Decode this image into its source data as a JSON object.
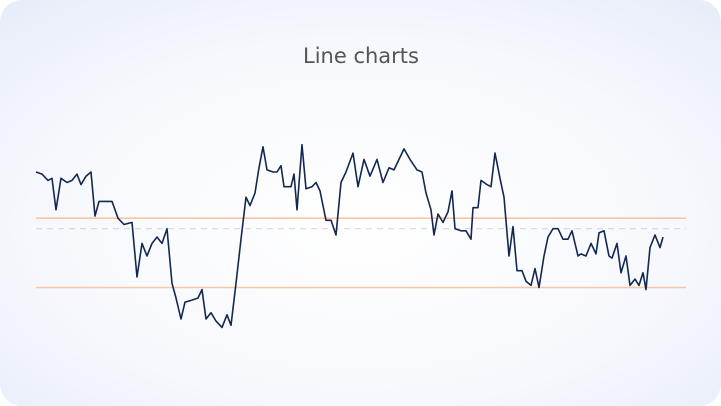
{
  "chart_data": {
    "type": "line",
    "title": "Line charts",
    "x": [
      0,
      6,
      12,
      16,
      20,
      25,
      31,
      36,
      41,
      45,
      50,
      55,
      59,
      63,
      69,
      76,
      82,
      88,
      96,
      101,
      106,
      111,
      116,
      121,
      126,
      131,
      136,
      140,
      145,
      149,
      156,
      162,
      166,
      170,
      175,
      180,
      186,
      191,
      195,
      200,
      205,
      210,
      214,
      219,
      223,
      227,
      231,
      237,
      241,
      245,
      248,
      255,
      258,
      261,
      266,
      270,
      276,
      280,
      284,
      290,
      295,
      300,
      305,
      310,
      317,
      322,
      328,
      334,
      341,
      347,
      353,
      358,
      363,
      368,
      374,
      381,
      386,
      390,
      395,
      398,
      402,
      407,
      412,
      416,
      419,
      425,
      430,
      435,
      437,
      442,
      445,
      451,
      455,
      459,
      464,
      468,
      473,
      477,
      481,
      486,
      490,
      495,
      499,
      503,
      508,
      512,
      517,
      522,
      527,
      532,
      536,
      542,
      545,
      550,
      555,
      560,
      563,
      568,
      573,
      576,
      581,
      585,
      590,
      594,
      599,
      603,
      607,
      610,
      614,
      619,
      624,
      627
    ],
    "values": [
      80,
      79,
      76,
      77,
      62,
      77,
      75,
      76,
      79,
      74,
      78,
      80,
      59,
      66,
      66,
      66,
      58,
      55,
      56,
      30,
      46,
      40,
      46,
      49,
      46,
      53,
      27,
      20,
      10,
      18,
      19,
      20,
      24,
      10,
      13,
      9,
      6,
      12,
      7,
      27,
      48,
      68,
      64,
      70,
      82,
      92,
      81,
      80,
      80,
      83,
      73,
      73,
      79,
      62,
      93,
      72,
      73,
      75,
      71,
      57,
      57,
      50,
      75,
      80,
      89,
      73,
      86,
      78,
      86,
      75,
      82,
      81,
      86,
      91,
      86,
      81,
      80,
      70,
      62,
      50,
      60,
      56,
      61,
      71,
      53,
      52,
      52,
      48,
      63,
      63,
      76,
      74,
      73,
      89,
      77,
      68,
      40,
      54,
      33,
      33,
      28,
      26,
      34,
      25,
      40,
      49,
      53,
      53,
      48,
      48,
      52,
      40,
      41,
      40,
      46,
      41,
      51,
      52,
      40,
      39,
      46,
      32,
      40,
      26,
      29,
      26,
      32,
      24,
      44,
      50,
      44,
      49
    ],
    "color": "#13284f",
    "xlim": [
      0,
      627
    ],
    "ylim": [
      0,
      100
    ],
    "reference_lines": [
      {
        "value": 58,
        "color": "#f7c7a3"
      },
      {
        "value": 25,
        "color": "#f7c7a3"
      },
      {
        "value": 53,
        "color": "#cfd3da",
        "dashed": true
      }
    ]
  }
}
